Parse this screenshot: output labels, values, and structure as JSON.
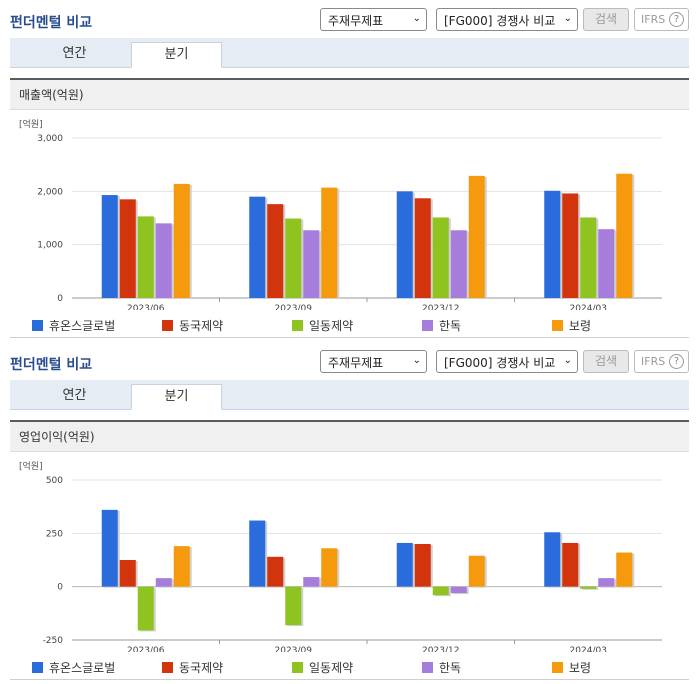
{
  "header": {
    "title": "펀더멘털 비교",
    "select_report": "주재무제표",
    "select_compare": "[FG000] 경쟁사 비교",
    "search_label": "검색",
    "ifrs_label": "IFRS",
    "ifrs_help": "?"
  },
  "tabs": [
    "연간",
    "분기"
  ],
  "active_tab": 1,
  "colors": {
    "휴온스글로벌": "#2a6cdc",
    "동국제약": "#d2340d",
    "일동제약": "#8fc31f",
    "한독": "#a77ddb",
    "보령": "#f59a0c"
  },
  "chart_data": [
    {
      "type": "bar",
      "title": "매출액(억원)",
      "unit_label": "[억원]",
      "categories": [
        "2023/06",
        "2023/09",
        "2023/12",
        "2024/03"
      ],
      "ylim": [
        0,
        3000
      ],
      "yticks": [
        0,
        1000,
        2000,
        3000
      ],
      "ytick_labels": [
        "0",
        "1,000",
        "2,000",
        "3,000"
      ],
      "legend_position": "bottom",
      "series": [
        {
          "name": "휴온스글로벌",
          "values": [
            1930,
            1900,
            2000,
            2010
          ]
        },
        {
          "name": "동국제약",
          "values": [
            1850,
            1760,
            1870,
            1960
          ]
        },
        {
          "name": "일동제약",
          "values": [
            1530,
            1490,
            1510,
            1510
          ]
        },
        {
          "name": "한독",
          "values": [
            1400,
            1270,
            1270,
            1290
          ]
        },
        {
          "name": "보령",
          "values": [
            2140,
            2070,
            2290,
            2330
          ]
        }
      ]
    },
    {
      "type": "bar",
      "title": "영업이익(억원)",
      "unit_label": "[억원]",
      "categories": [
        "2023/06",
        "2023/09",
        "2023/12",
        "2024/03"
      ],
      "ylim": [
        -250,
        500
      ],
      "yticks": [
        -250,
        0,
        250,
        500
      ],
      "ytick_labels": [
        "-250",
        "0",
        "250",
        "500"
      ],
      "legend_position": "bottom",
      "series": [
        {
          "name": "휴온스글로벌",
          "values": [
            360,
            310,
            205,
            255
          ]
        },
        {
          "name": "동국제약",
          "values": [
            125,
            140,
            200,
            205
          ]
        },
        {
          "name": "일동제약",
          "values": [
            -205,
            -180,
            -40,
            -10
          ]
        },
        {
          "name": "한독",
          "values": [
            40,
            45,
            -30,
            40
          ]
        },
        {
          "name": "보령",
          "values": [
            190,
            180,
            145,
            160
          ]
        }
      ]
    }
  ]
}
